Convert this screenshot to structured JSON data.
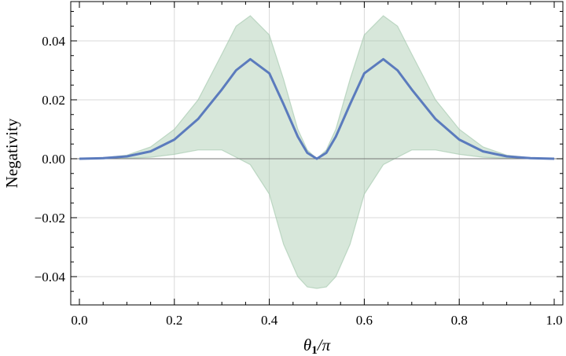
{
  "chart_data": {
    "type": "line",
    "title": "",
    "xlabel": "θ1/π",
    "ylabel": "Negativity",
    "xlim": [
      0.0,
      1.0
    ],
    "ylim": [
      -0.05,
      0.053
    ],
    "xticks": [
      "0.0",
      "0.2",
      "0.4",
      "0.6",
      "0.8",
      "1.0"
    ],
    "yticks": [
      "-0.04",
      "-0.02",
      "0.00",
      "0.02",
      "0.04"
    ],
    "grid": true,
    "legend": "none",
    "series": [
      {
        "kind": "line",
        "color": "#5b7bbd",
        "x": [
          0.0,
          0.05,
          0.1,
          0.15,
          0.2,
          0.25,
          0.3,
          0.33,
          0.36,
          0.4,
          0.43,
          0.46,
          0.48,
          0.5,
          0.52,
          0.54,
          0.57,
          0.6,
          0.64,
          0.67,
          0.7,
          0.75,
          0.8,
          0.85,
          0.9,
          0.95,
          1.0
        ],
        "y": [
          0.0,
          0.0002,
          0.0008,
          0.0025,
          0.0065,
          0.0135,
          0.0235,
          0.03,
          0.0338,
          0.029,
          0.0185,
          0.0075,
          0.002,
          0.0,
          0.002,
          0.0075,
          0.0185,
          0.029,
          0.0338,
          0.03,
          0.0235,
          0.0135,
          0.0065,
          0.0025,
          0.0008,
          0.0002,
          0.0
        ]
      },
      {
        "kind": "band",
        "color": "#9fc5a8",
        "x": [
          0.0,
          0.05,
          0.1,
          0.15,
          0.2,
          0.25,
          0.3,
          0.33,
          0.36,
          0.4,
          0.43,
          0.46,
          0.48,
          0.5,
          0.52,
          0.54,
          0.57,
          0.6,
          0.64,
          0.67,
          0.7,
          0.75,
          0.8,
          0.85,
          0.9,
          0.95,
          1.0
        ],
        "upper": [
          0.0,
          0.0003,
          0.0012,
          0.004,
          0.01,
          0.02,
          0.0355,
          0.045,
          0.0485,
          0.042,
          0.027,
          0.01,
          0.003,
          0.0,
          0.003,
          0.01,
          0.027,
          0.042,
          0.0485,
          0.045,
          0.0355,
          0.02,
          0.01,
          0.004,
          0.0012,
          0.0003,
          0.0
        ],
        "lower": [
          0.0,
          0.0,
          0.0002,
          0.0005,
          0.0015,
          0.003,
          0.003,
          0.0005,
          -0.002,
          -0.012,
          -0.029,
          -0.04,
          -0.0435,
          -0.044,
          -0.0435,
          -0.04,
          -0.029,
          -0.012,
          -0.002,
          0.0005,
          0.003,
          0.003,
          0.0015,
          0.0005,
          0.0002,
          0.0,
          0.0
        ]
      }
    ]
  }
}
